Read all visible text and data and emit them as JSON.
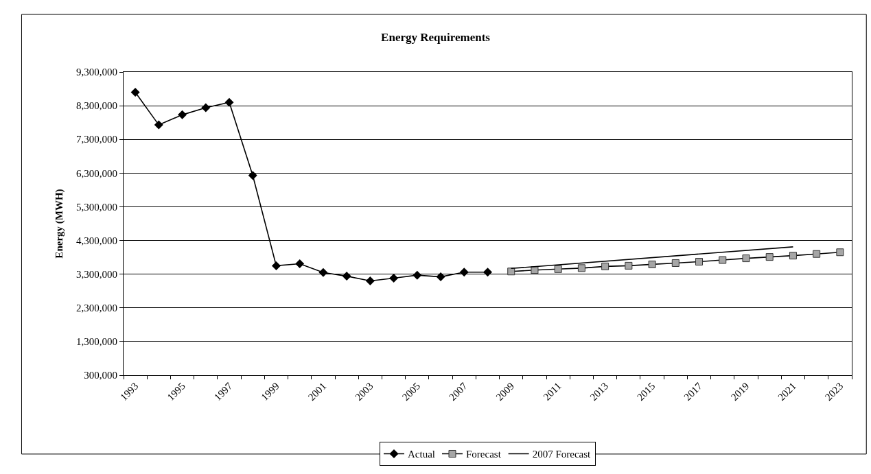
{
  "chart_data": {
    "type": "line",
    "title": "Energy Requirements",
    "ylabel": "Energy (MWH)",
    "categories": [
      "1993",
      null,
      "1995",
      null,
      "1997",
      null,
      "1999",
      null,
      "2001",
      null,
      "2003",
      null,
      "2005",
      null,
      "2007",
      null,
      "2009",
      null,
      "2011",
      null,
      "2013",
      null,
      "2015",
      null,
      "2017",
      null,
      "2019",
      null,
      "2021",
      null,
      "2023"
    ],
    "series": [
      {
        "name": "Actual",
        "color": "#000000",
        "marker": "diamond",
        "values": [
          8700000,
          7730000,
          8030000,
          8240000,
          8400000,
          6230000,
          3550000,
          3610000,
          3350000,
          3240000,
          3100000,
          3180000,
          3270000,
          3220000,
          3360000,
          3360000,
          null,
          null,
          null,
          null,
          null,
          null,
          null,
          null,
          null,
          null,
          null,
          null,
          null,
          null,
          null
        ]
      },
      {
        "name": "Forecast",
        "color": "#a6a6a6",
        "marker": "square",
        "values": [
          null,
          null,
          null,
          null,
          null,
          null,
          null,
          null,
          null,
          null,
          null,
          null,
          null,
          null,
          null,
          null,
          3380000,
          3420000,
          3450000,
          3480000,
          3530000,
          3550000,
          3590000,
          3630000,
          3670000,
          3720000,
          3770000,
          3810000,
          3850000,
          3900000,
          3950000
        ]
      },
      {
        "name": "2007 Forecast",
        "color": "#000000",
        "marker": "none",
        "values": [
          null,
          null,
          null,
          null,
          null,
          null,
          null,
          null,
          null,
          null,
          null,
          null,
          null,
          null,
          null,
          null,
          3470000,
          null,
          null,
          null,
          null,
          null,
          null,
          null,
          null,
          null,
          null,
          null,
          4110000,
          null,
          null
        ]
      }
    ],
    "ylim": [
      300000,
      9300000
    ],
    "yticks": [
      {
        "value": 300000,
        "label": "300,000"
      },
      {
        "value": 1300000,
        "label": "1,300,000"
      },
      {
        "value": 2300000,
        "label": "2,300,000"
      },
      {
        "value": 3300000,
        "label": "3,300,000"
      },
      {
        "value": 4300000,
        "label": "4,300,000"
      },
      {
        "value": 5300000,
        "label": "5,300,000"
      },
      {
        "value": 6300000,
        "label": "6,300,000"
      },
      {
        "value": 7300000,
        "label": "7,300,000"
      },
      {
        "value": 8300000,
        "label": "8,300,000"
      },
      {
        "value": 9300000,
        "label": "9,300,000"
      }
    ],
    "grid": "y",
    "legend": "bottom",
    "line_style": "solid"
  }
}
